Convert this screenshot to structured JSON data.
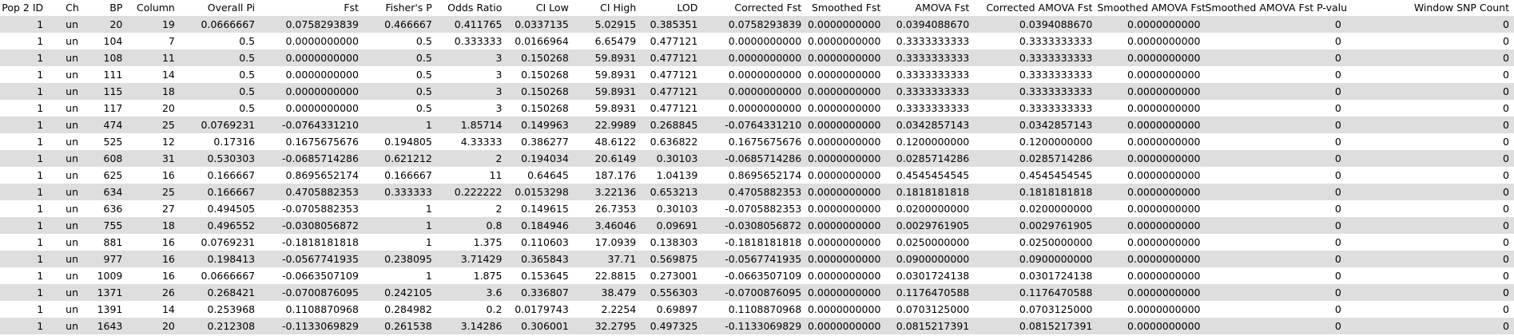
{
  "table": {
    "columns": [
      "Pop 2 ID",
      "Chr",
      "BP",
      "Column",
      "Overall Pi",
      "Fst",
      "Fisher's P",
      "Odds Ratio",
      "CI Low",
      "CI High",
      "LOD",
      "Corrected Fst",
      "Smoothed Fst",
      "AMOVA Fst",
      "Corrected AMOVA Fst",
      "Smoothed AMOVA Fst",
      "Smoothed AMOVA Fst P-value",
      "Window SNP Count"
    ],
    "rows": [
      [
        "1",
        "un",
        "20",
        "19",
        "0.0666667",
        "0.0758293839",
        "0.466667",
        "0.411765",
        "0.0337135",
        "5.02915",
        "0.385351",
        "0.0758293839",
        "0.0000000000",
        "0.0394088670",
        "0.0394088670",
        "0.0000000000",
        "0",
        "0"
      ],
      [
        "1",
        "un",
        "104",
        "7",
        "0.5",
        "0.0000000000",
        "0.5",
        "0.333333",
        "0.0166964",
        "6.65479",
        "0.477121",
        "0.0000000000",
        "0.0000000000",
        "0.3333333333",
        "0.3333333333",
        "0.0000000000",
        "0",
        "0"
      ],
      [
        "1",
        "un",
        "108",
        "11",
        "0.5",
        "0.0000000000",
        "0.5",
        "3",
        "0.150268",
        "59.8931",
        "0.477121",
        "0.0000000000",
        "0.0000000000",
        "0.3333333333",
        "0.3333333333",
        "0.0000000000",
        "0",
        "0"
      ],
      [
        "1",
        "un",
        "111",
        "14",
        "0.5",
        "0.0000000000",
        "0.5",
        "3",
        "0.150268",
        "59.8931",
        "0.477121",
        "0.0000000000",
        "0.0000000000",
        "0.3333333333",
        "0.3333333333",
        "0.0000000000",
        "0",
        "0"
      ],
      [
        "1",
        "un",
        "115",
        "18",
        "0.5",
        "0.0000000000",
        "0.5",
        "3",
        "0.150268",
        "59.8931",
        "0.477121",
        "0.0000000000",
        "0.0000000000",
        "0.3333333333",
        "0.3333333333",
        "0.0000000000",
        "0",
        "0"
      ],
      [
        "1",
        "un",
        "117",
        "20",
        "0.5",
        "0.0000000000",
        "0.5",
        "3",
        "0.150268",
        "59.8931",
        "0.477121",
        "0.0000000000",
        "0.0000000000",
        "0.3333333333",
        "0.3333333333",
        "0.0000000000",
        "0",
        "0"
      ],
      [
        "1",
        "un",
        "474",
        "25",
        "0.0769231",
        "-0.0764331210",
        "1",
        "1.85714",
        "0.149963",
        "22.9989",
        "0.268845",
        "-0.0764331210",
        "0.0000000000",
        "0.0342857143",
        "0.0342857143",
        "0.0000000000",
        "0",
        "0"
      ],
      [
        "1",
        "un",
        "525",
        "12",
        "0.17316",
        "0.1675675676",
        "0.194805",
        "4.33333",
        "0.386277",
        "48.6122",
        "0.636822",
        "0.1675675676",
        "0.0000000000",
        "0.1200000000",
        "0.1200000000",
        "0.0000000000",
        "0",
        "0"
      ],
      [
        "1",
        "un",
        "608",
        "31",
        "0.530303",
        "-0.0685714286",
        "0.621212",
        "2",
        "0.194034",
        "20.6149",
        "0.30103",
        "-0.0685714286",
        "0.0000000000",
        "0.0285714286",
        "0.0285714286",
        "0.0000000000",
        "0",
        "0"
      ],
      [
        "1",
        "un",
        "625",
        "16",
        "0.166667",
        "0.8695652174",
        "0.166667",
        "11",
        "0.64645",
        "187.176",
        "1.04139",
        "0.8695652174",
        "0.0000000000",
        "0.4545454545",
        "0.4545454545",
        "0.0000000000",
        "0",
        "0"
      ],
      [
        "1",
        "un",
        "634",
        "25",
        "0.166667",
        "0.4705882353",
        "0.333333",
        "0.222222",
        "0.0153298",
        "3.22136",
        "0.653213",
        "0.4705882353",
        "0.0000000000",
        "0.1818181818",
        "0.1818181818",
        "0.0000000000",
        "0",
        "0"
      ],
      [
        "1",
        "un",
        "636",
        "27",
        "0.494505",
        "-0.0705882353",
        "1",
        "2",
        "0.149615",
        "26.7353",
        "0.30103",
        "-0.0705882353",
        "0.0000000000",
        "0.0200000000",
        "0.0200000000",
        "0.0000000000",
        "0",
        "0"
      ],
      [
        "1",
        "un",
        "755",
        "18",
        "0.496552",
        "-0.0308056872",
        "1",
        "0.8",
        "0.184946",
        "3.46046",
        "0.09691",
        "-0.0308056872",
        "0.0000000000",
        "0.0029761905",
        "0.0029761905",
        "0.0000000000",
        "0",
        "0"
      ],
      [
        "1",
        "un",
        "881",
        "16",
        "0.0769231",
        "-0.1818181818",
        "1",
        "1.375",
        "0.110603",
        "17.0939",
        "0.138303",
        "-0.1818181818",
        "0.0000000000",
        "0.0250000000",
        "0.0250000000",
        "0.0000000000",
        "0",
        "0"
      ],
      [
        "1",
        "un",
        "977",
        "16",
        "0.198413",
        "-0.0567741935",
        "0.238095",
        "3.71429",
        "0.365843",
        "37.71",
        "0.569875",
        "-0.0567741935",
        "0.0000000000",
        "0.0900000000",
        "0.0900000000",
        "0.0000000000",
        "0",
        "0"
      ],
      [
        "1",
        "un",
        "1009",
        "16",
        "0.0666667",
        "-0.0663507109",
        "1",
        "1.875",
        "0.153645",
        "22.8815",
        "0.273001",
        "-0.0663507109",
        "0.0000000000",
        "0.0301724138",
        "0.0301724138",
        "0.0000000000",
        "0",
        "0"
      ],
      [
        "1",
        "un",
        "1371",
        "26",
        "0.268421",
        "-0.0700876095",
        "0.242105",
        "3.6",
        "0.336807",
        "38.479",
        "0.556303",
        "-0.0700876095",
        "0.0000000000",
        "0.1176470588",
        "0.1176470588",
        "0.0000000000",
        "0",
        "0"
      ],
      [
        "1",
        "un",
        "1391",
        "14",
        "0.253968",
        "0.1108870968",
        "0.284982",
        "0.2",
        "0.0179743",
        "2.2254",
        "0.69897",
        "0.1108870968",
        "0.0000000000",
        "0.0703125000",
        "0.0703125000",
        "0.0000000000",
        "0",
        "0"
      ],
      [
        "1",
        "un",
        "1643",
        "20",
        "0.212308",
        "-0.1133069829",
        "0.261538",
        "3.14286",
        "0.306001",
        "32.2795",
        "0.497325",
        "-0.1133069829",
        "0.0000000000",
        "0.0815217391",
        "0.0815217391",
        "0.0000000000",
        "0",
        "0"
      ]
    ]
  }
}
